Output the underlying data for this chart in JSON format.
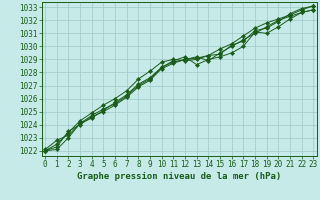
{
  "xlabel_bottom": "Graphe pression niveau de la mer (hPa)",
  "bg_color": "#c5eae8",
  "grid_color": "#9ec8c6",
  "line_color": "#1a5c1a",
  "marker_color": "#1a5c1a",
  "xmin": -0.3,
  "xmax": 23.3,
  "ymin": 1021.6,
  "ymax": 1033.4,
  "yticks": [
    1022,
    1023,
    1024,
    1025,
    1026,
    1027,
    1028,
    1029,
    1030,
    1031,
    1032,
    1033
  ],
  "xticks": [
    0,
    1,
    2,
    3,
    4,
    5,
    6,
    7,
    8,
    9,
    10,
    11,
    12,
    13,
    14,
    15,
    16,
    17,
    18,
    19,
    20,
    21,
    22,
    23
  ],
  "lines": [
    [
      1022.1,
      1022.8,
      1023.2,
      1024.1,
      1024.7,
      1025.2,
      1025.6,
      1026.2,
      1027.0,
      1027.5,
      1028.4,
      1028.9,
      1029.2,
      1028.6,
      1029.0,
      1029.2,
      1029.5,
      1030.0,
      1031.1,
      1031.0,
      1031.5,
      1032.1,
      1032.6,
      1032.8
    ],
    [
      1022.0,
      1022.5,
      1023.4,
      1024.3,
      1024.9,
      1025.5,
      1026.0,
      1026.6,
      1027.5,
      1028.1,
      1028.8,
      1029.0,
      1028.9,
      1029.0,
      1029.3,
      1029.4,
      1030.1,
      1030.4,
      1031.2,
      1031.4,
      1031.9,
      1032.5,
      1032.9,
      1033.1
    ],
    [
      1022.0,
      1022.3,
      1023.5,
      1024.0,
      1024.6,
      1025.0,
      1025.5,
      1026.1,
      1026.9,
      1027.4,
      1028.3,
      1028.7,
      1029.0,
      1029.2,
      1028.9,
      1029.5,
      1030.0,
      1030.5,
      1031.0,
      1031.5,
      1032.0,
      1032.3,
      1032.6,
      1032.8
    ],
    [
      1022.0,
      1022.1,
      1023.0,
      1024.1,
      1024.5,
      1025.1,
      1025.7,
      1026.3,
      1027.1,
      1027.6,
      1028.4,
      1028.8,
      1029.0,
      1029.1,
      1029.3,
      1029.8,
      1030.2,
      1030.8,
      1031.4,
      1031.8,
      1032.1,
      1032.4,
      1032.8,
      1033.1
    ]
  ],
  "tick_fontsize": 5.5,
  "title_fontsize": 6.5,
  "linewidth": 0.7,
  "markersize": 2.2
}
